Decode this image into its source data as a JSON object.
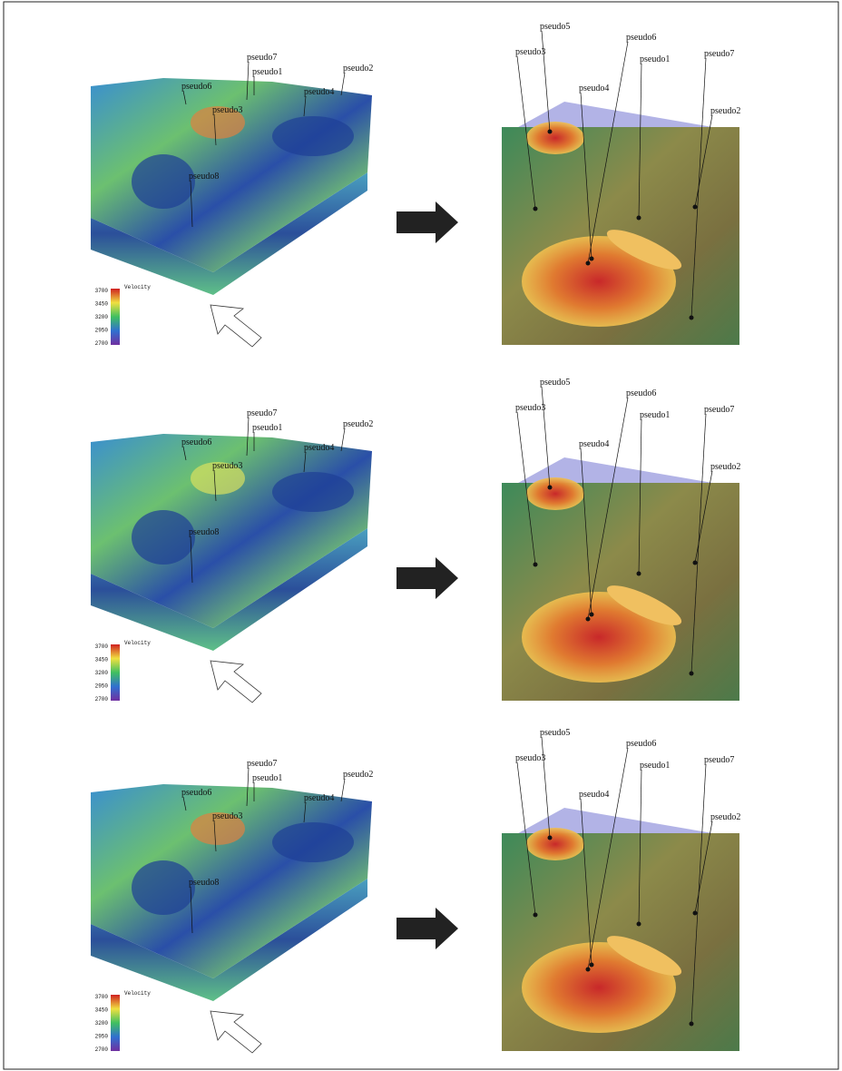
{
  "rows": [
    {
      "left": {
        "wells": [
          "pseudo6",
          "pseudo7",
          "pseudo1",
          "pseudo2",
          "pseudo4",
          "pseudo3",
          "pseudo8"
        ],
        "colorbar": {
          "title": "Velocity",
          "ticks": [
            3700,
            3450,
            3200,
            2950,
            2700
          ]
        }
      },
      "right": {
        "wells": [
          "pseudo5",
          "pseudo3",
          "pseudo6",
          "pseudo1",
          "pseudo7",
          "pseudo4",
          "pseudo2"
        ]
      }
    },
    {
      "left": {
        "wells": [
          "pseudo6",
          "pseudo7",
          "pseudo1",
          "pseudo2",
          "pseudo4",
          "pseudo3",
          "pseudo8"
        ],
        "colorbar": {
          "title": "Velocity",
          "ticks": [
            3700,
            3450,
            3200,
            2950,
            2700
          ]
        }
      },
      "right": {
        "wells": [
          "pseudo5",
          "pseudo3",
          "pseudo6",
          "pseudo1",
          "pseudo7",
          "pseudo4",
          "pseudo2"
        ]
      }
    },
    {
      "left": {
        "wells": [
          "pseudo6",
          "pseudo7",
          "pseudo1",
          "pseudo2",
          "pseudo4",
          "pseudo3",
          "pseudo8"
        ],
        "colorbar": {
          "title": "Velocity",
          "ticks": [
            3700,
            3450,
            3200,
            2950,
            2700
          ]
        }
      },
      "right": {
        "wells": [
          "pseudo5",
          "pseudo3",
          "pseudo6",
          "pseudo1",
          "pseudo7",
          "pseudo4",
          "pseudo2"
        ]
      }
    }
  ]
}
